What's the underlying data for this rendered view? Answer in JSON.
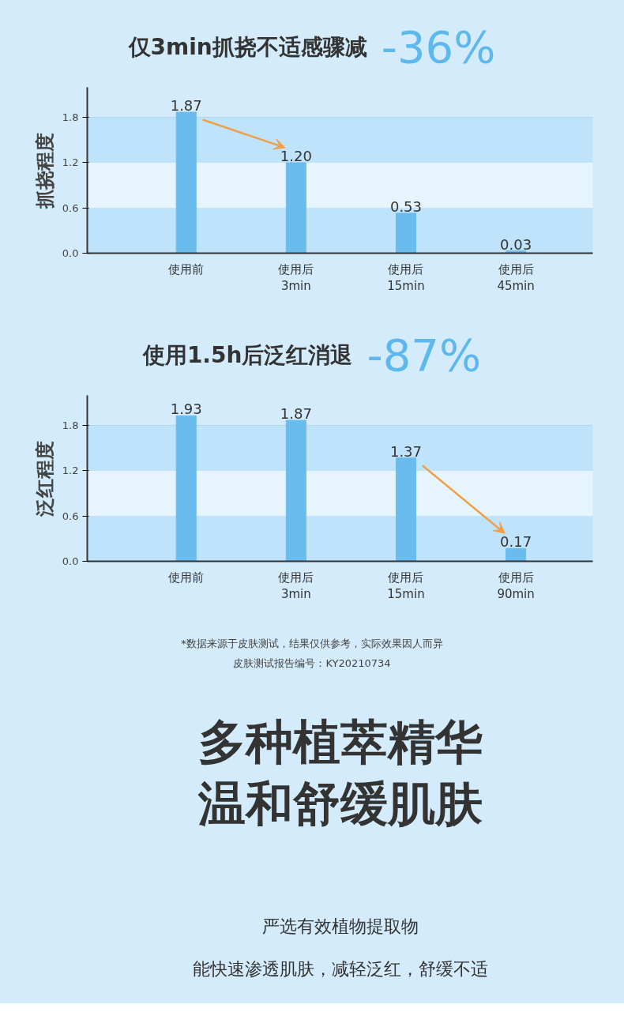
{
  "chart_data": [
    {
      "type": "bar",
      "title": "仅3min抓挠不适感骤减",
      "annotations": [
        "-36%"
      ],
      "ylabel": "抓挠程度",
      "categories": [
        "使用前",
        "使用后\n3min",
        "使用后\n15min",
        "使用后\n45min"
      ],
      "values": [
        1.87,
        1.2,
        0.53,
        0.03
      ],
      "value_labels": [
        "1.87",
        "1.20",
        "0.53",
        "0.03"
      ],
      "color": "#6bbcee",
      "ylim": [
        0,
        2.2
      ],
      "yticks": [
        {
          "value": 0,
          "label": "0.0"
        },
        0.6,
        1.2,
        1.8
      ],
      "grid": "y",
      "bands": [
        {
          "axis": "y",
          "from": 0,
          "to": 0.6,
          "color": "#bfe3fa"
        },
        {
          "axis": "y",
          "from": 0.6,
          "to": 1.2,
          "color": "#e6f5fd"
        },
        {
          "axis": "y",
          "from": 1.2,
          "to": 1.8,
          "color": "#bfe3fa"
        }
      ]
    },
    {
      "type": "bar",
      "title": "使用1.5h后泛红消退",
      "annotations": [
        "-87%",
        "*数据来源于皮肤测试，结果仅供参考，实际效果因人而异",
        "皮肤测试报告编号：KY20210734"
      ],
      "ylabel": "泛红程度",
      "categories": [
        "使用前",
        "使用后\n3min",
        "使用后\n15min",
        "使用后\n90min"
      ],
      "values": [
        1.93,
        1.87,
        1.37,
        0.17
      ],
      "value_labels": [
        "1.93",
        "1.87",
        "1.37",
        "0.17"
      ],
      "color": "#6bbcee",
      "ylim": [
        0,
        2.2
      ],
      "yticks": [
        {
          "value": 0,
          "label": "0.0"
        },
        0.6,
        1.2,
        1.8
      ],
      "grid": "y",
      "bands": [
        {
          "axis": "y",
          "from": 0,
          "to": 0.6,
          "color": "#bfe3fa"
        },
        {
          "axis": "y",
          "from": 0.6,
          "to": 1.2,
          "color": "#e6f5fd"
        },
        {
          "axis": "y",
          "from": 1.2,
          "to": 1.8,
          "color": "#bfe3fa"
        }
      ]
    },
    {
      "type": "other",
      "annotations": [
        "多种植萃精华",
        "温和舒缓肌肤",
        "严选有效植物提取物",
        "能快速渗透肌肤，减轻泛红，舒缓不适"
      ]
    }
  ]
}
